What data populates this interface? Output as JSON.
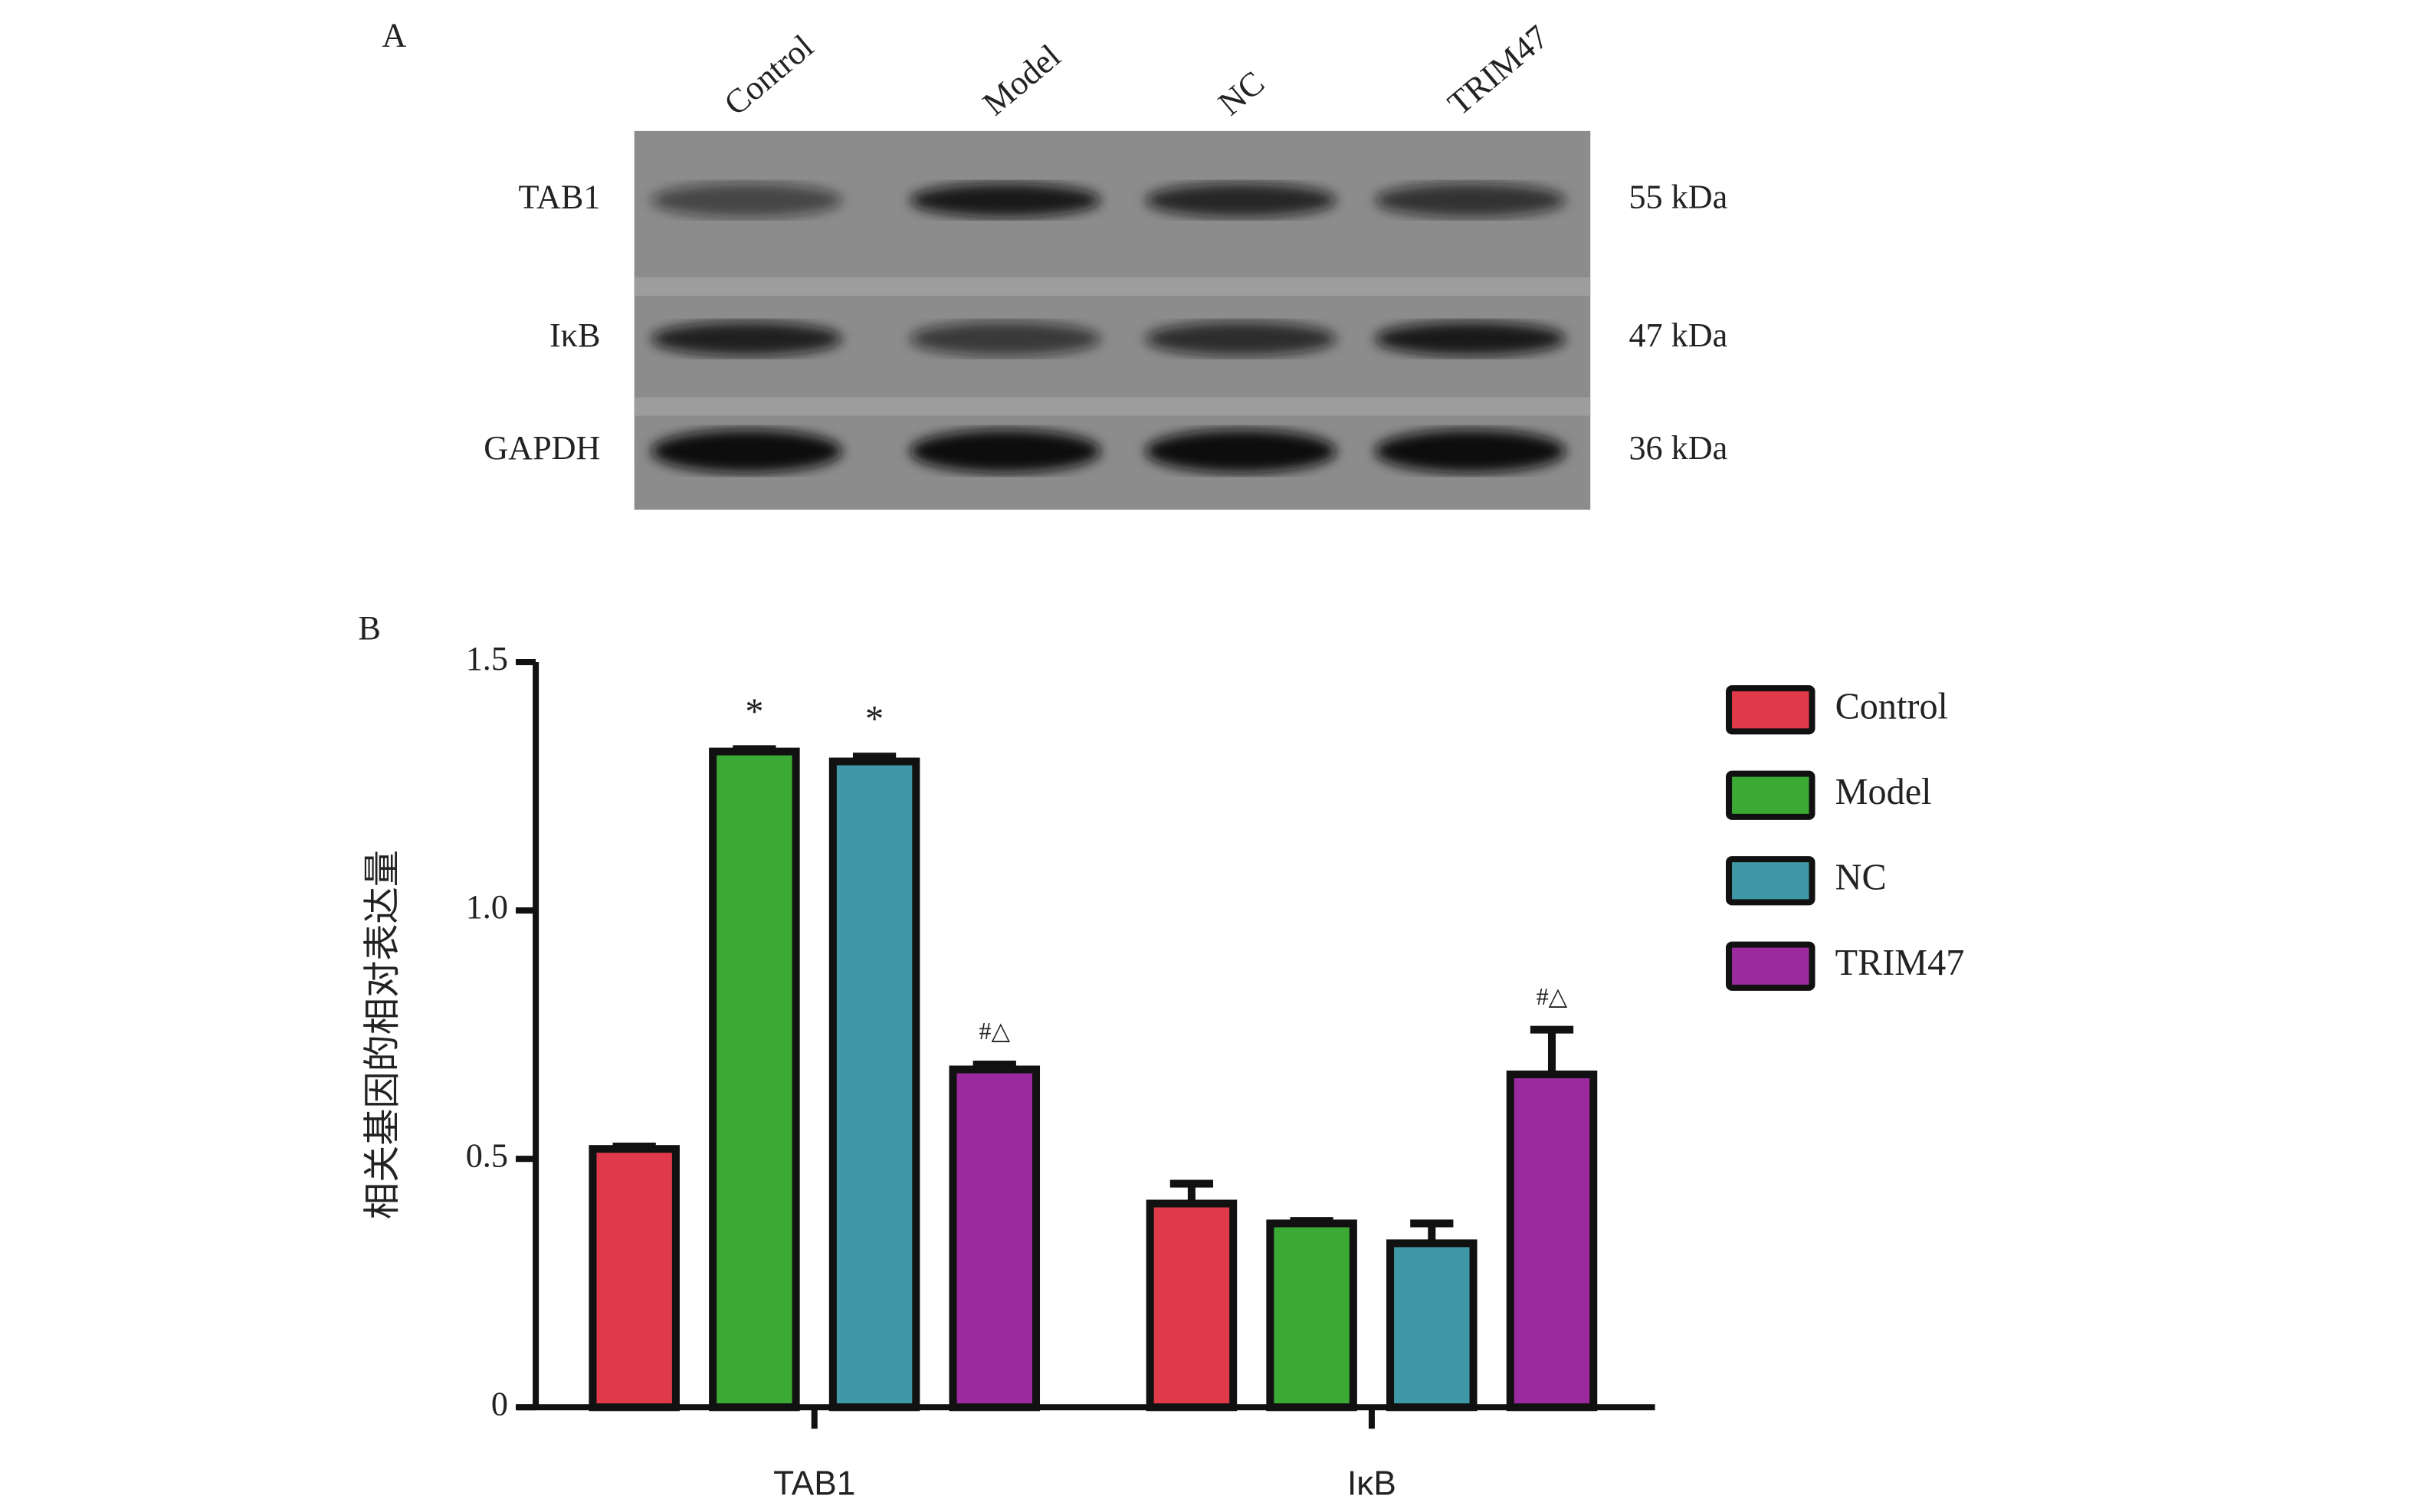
{
  "blot": {
    "panel_label": "A",
    "lanes": [
      "Control",
      "Model",
      "NC",
      "TRIM47"
    ],
    "rows": [
      {
        "label": "TAB1",
        "size": "55 kDa"
      },
      {
        "label": "IκB",
        "size": "47 kDa"
      },
      {
        "label": "GAPDH",
        "size": "36 kDa"
      }
    ]
  },
  "chart_data": {
    "type": "bar",
    "panel_label": "B",
    "y_label": "相关基因的相对表达量",
    "categories": [
      "TAB1",
      "IκB"
    ],
    "series": [
      {
        "name": "Control",
        "color": "#e03a4a",
        "values": [
          0.52,
          0.41
        ],
        "errors": [
          0.005,
          0.04
        ],
        "annotations": [
          null,
          null
        ]
      },
      {
        "name": "Model",
        "color": "#3aaa35",
        "values": [
          1.32,
          0.37
        ],
        "errors": [
          0.005,
          0.005
        ],
        "annotations": [
          "*",
          null
        ]
      },
      {
        "name": "NC",
        "color": "#3f98a6",
        "values": [
          1.3,
          0.33
        ],
        "errors": [
          0.01,
          0.04
        ],
        "annotations": [
          "*",
          null
        ]
      },
      {
        "name": "TRIM47",
        "color": "#9b2a9e",
        "values": [
          0.68,
          0.67
        ],
        "errors": [
          0.01,
          0.09
        ],
        "annotations": [
          "#△",
          "#△"
        ]
      }
    ],
    "ylim": [
      0,
      1.5
    ],
    "yticks": [
      0,
      0.5,
      {
        "value": 1,
        "label": "1.0"
      },
      1.5
    ],
    "legend": "right"
  }
}
